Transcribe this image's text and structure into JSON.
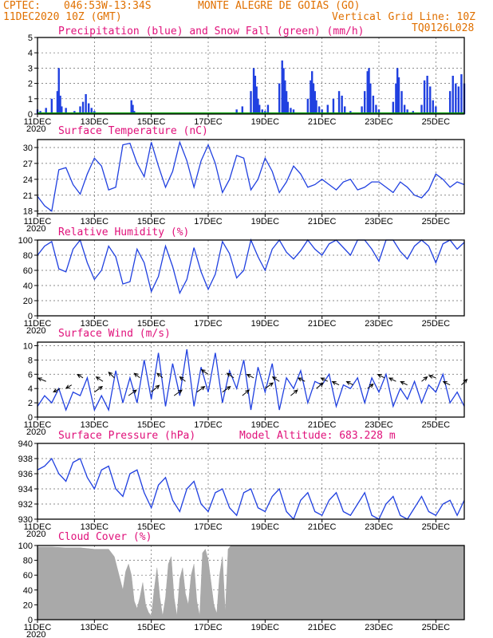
{
  "header": {
    "source": "CPTEC:",
    "location_coords": "046:53W-13:34S",
    "location_name": "MONTE ALEGRE DE GOIAS (GO)",
    "run_time": "11DEC2020 10Z (GMT)",
    "grid_note": "Vertical Grid Line: 10Z",
    "model_code": "TQ0126L028"
  },
  "colors": {
    "header": "#e07000",
    "panel_title": "#e0107a",
    "series_line": "#2040e0",
    "precip": "#2040e0",
    "snow": "#00a000",
    "cloud": "#a9a9a9"
  },
  "x_axis": {
    "start": "11DEC2020 10Z",
    "end": "26DEC2020 10Z",
    "tick_days": [
      11,
      13,
      15,
      17,
      19,
      21,
      23,
      25
    ],
    "tick_labels": [
      "11DEC",
      "13DEC",
      "15DEC",
      "17DEC",
      "19DEC",
      "21DEC",
      "23DEC",
      "25DEC"
    ],
    "year_label": "2020"
  },
  "chart_data": [
    {
      "type": "bar",
      "title": "Precipitation (blue) and Snow Fall (green) (mm/h)",
      "ylim": [
        0,
        5
      ],
      "yticks": [
        0,
        1,
        2,
        3,
        4,
        5
      ],
      "series": [
        {
          "name": "Precipitation",
          "days": [
            11.0,
            11.1,
            11.2,
            11.3,
            11.5,
            11.7,
            11.75,
            11.8,
            11.85,
            12.0,
            12.3,
            12.5,
            12.6,
            12.7,
            12.8,
            12.9,
            13.0,
            13.5,
            14.3,
            14.35,
            14.4,
            18.0,
            18.2,
            18.5,
            18.6,
            18.65,
            18.7,
            18.75,
            18.8,
            18.9,
            19.0,
            19.1,
            19.5,
            19.6,
            19.65,
            19.7,
            19.75,
            19.8,
            19.9,
            20.0,
            20.5,
            20.6,
            20.65,
            20.7,
            20.75,
            20.8,
            20.9,
            21.0,
            21.2,
            21.4,
            21.6,
            21.7,
            21.8,
            22.0,
            22.4,
            22.5,
            22.6,
            22.65,
            22.7,
            22.8,
            22.9,
            23.0,
            23.5,
            23.6,
            23.65,
            23.7,
            23.8,
            23.9,
            24.0,
            24.2,
            24.5,
            24.6,
            24.7,
            24.8,
            24.9,
            25.0,
            25.5,
            25.6,
            25.7,
            25.8,
            25.9,
            26.0
          ],
          "values": [
            0.3,
            0.2,
            0.1,
            0.4,
            1.0,
            1.5,
            3.0,
            1.2,
            0.5,
            0.4,
            0.2,
            0.5,
            0.8,
            1.3,
            0.7,
            0.4,
            0.2,
            0.1,
            0.9,
            0.6,
            0.2,
            0.3,
            0.5,
            1.5,
            3.0,
            2.5,
            1.8,
            1.0,
            0.6,
            0.3,
            0.2,
            0.6,
            2.0,
            3.5,
            3.0,
            2.2,
            1.5,
            0.8,
            0.4,
            0.3,
            1.0,
            2.2,
            2.8,
            2.0,
            1.5,
            0.9,
            0.5,
            0.3,
            0.6,
            1.0,
            1.5,
            1.2,
            0.5,
            0.2,
            0.5,
            1.5,
            2.8,
            3.0,
            2.0,
            1.2,
            0.6,
            0.3,
            0.8,
            2.0,
            3.0,
            2.4,
            1.5,
            0.6,
            0.3,
            0.2,
            0.6,
            2.2,
            2.5,
            1.8,
            0.9,
            0.5,
            1.5,
            2.5,
            2.0,
            1.8,
            2.6,
            2.0
          ]
        },
        {
          "name": "Snow Fall",
          "days": [
            11.0,
            26.0
          ],
          "values": [
            0,
            0
          ]
        }
      ]
    },
    {
      "type": "line",
      "title": "Surface Temperature (nC)",
      "ylim": [
        17.5,
        31.5
      ],
      "yticks": [
        18,
        21,
        24,
        27,
        30
      ],
      "x_days": [
        11.0,
        11.25,
        11.5,
        11.75,
        12.0,
        12.25,
        12.5,
        12.75,
        13.0,
        13.25,
        13.5,
        13.75,
        14.0,
        14.25,
        14.5,
        14.75,
        15.0,
        15.25,
        15.5,
        15.75,
        16.0,
        16.25,
        16.5,
        16.75,
        17.0,
        17.25,
        17.5,
        17.75,
        18.0,
        18.25,
        18.5,
        18.75,
        19.0,
        19.25,
        19.5,
        19.75,
        20.0,
        20.25,
        20.5,
        20.75,
        21.0,
        21.25,
        21.5,
        21.75,
        22.0,
        22.25,
        22.5,
        22.75,
        23.0,
        23.25,
        23.5,
        23.75,
        24.0,
        24.25,
        24.5,
        24.75,
        25.0,
        25.25,
        25.5,
        25.75,
        26.0
      ],
      "values": [
        20.8,
        19.0,
        18.0,
        25.8,
        26.2,
        23.0,
        21.2,
        25.0,
        28.0,
        26.5,
        22.0,
        22.5,
        30.5,
        30.8,
        27.0,
        24.5,
        31.0,
        26.5,
        22.5,
        25.5,
        31.0,
        27.5,
        22.5,
        27.5,
        30.5,
        27.0,
        21.5,
        24.0,
        28.5,
        28.0,
        22.0,
        24.0,
        28.0,
        25.5,
        21.5,
        23.5,
        26.5,
        25.0,
        22.5,
        23.0,
        24.0,
        23.0,
        22.0,
        23.5,
        24.0,
        22.0,
        22.5,
        23.5,
        23.5,
        22.5,
        21.5,
        23.5,
        22.5,
        21.0,
        20.5,
        22.0,
        25.0,
        24.0,
        22.5,
        23.5,
        23.0
      ]
    },
    {
      "type": "line",
      "title": "Relative Humidity (%)",
      "ylim": [
        0,
        100
      ],
      "yticks": [
        0,
        20,
        40,
        60,
        80,
        100
      ],
      "x_days": [
        11.0,
        11.25,
        11.5,
        11.75,
        12.0,
        12.25,
        12.5,
        12.75,
        13.0,
        13.25,
        13.5,
        13.75,
        14.0,
        14.25,
        14.5,
        14.75,
        15.0,
        15.25,
        15.5,
        15.75,
        16.0,
        16.25,
        16.5,
        16.75,
        17.0,
        17.25,
        17.5,
        17.75,
        18.0,
        18.25,
        18.5,
        18.75,
        19.0,
        19.25,
        19.5,
        19.75,
        20.0,
        20.25,
        20.5,
        20.75,
        21.0,
        21.25,
        21.5,
        21.75,
        22.0,
        22.25,
        22.5,
        22.75,
        23.0,
        23.25,
        23.5,
        23.75,
        24.0,
        24.25,
        24.5,
        24.75,
        25.0,
        25.25,
        25.5,
        25.75,
        26.0
      ],
      "values": [
        80,
        92,
        98,
        62,
        58,
        88,
        100,
        70,
        48,
        60,
        92,
        78,
        42,
        45,
        88,
        70,
        32,
        52,
        92,
        65,
        30,
        48,
        90,
        58,
        35,
        55,
        98,
        82,
        50,
        60,
        100,
        78,
        60,
        88,
        100,
        84,
        75,
        86,
        100,
        88,
        80,
        95,
        100,
        90,
        80,
        100,
        100,
        88,
        72,
        100,
        100,
        85,
        75,
        92,
        100,
        92,
        70,
        95,
        100,
        88,
        97
      ]
    },
    {
      "type": "line",
      "title": "Surface Wind (m/s)",
      "ylim": [
        0,
        10.5
      ],
      "yticks": [
        0,
        2,
        4,
        6,
        8,
        10
      ],
      "x_days": [
        11.0,
        11.25,
        11.5,
        11.75,
        12.0,
        12.25,
        12.5,
        12.75,
        13.0,
        13.25,
        13.5,
        13.75,
        14.0,
        14.25,
        14.5,
        14.75,
        15.0,
        15.25,
        15.5,
        15.75,
        16.0,
        16.25,
        16.5,
        16.75,
        17.0,
        17.25,
        17.5,
        17.75,
        18.0,
        18.25,
        18.5,
        18.75,
        19.0,
        19.25,
        19.5,
        19.75,
        20.0,
        20.25,
        20.5,
        20.75,
        21.0,
        21.25,
        21.5,
        21.75,
        22.0,
        22.25,
        22.5,
        22.75,
        23.0,
        23.25,
        23.5,
        23.75,
        24.0,
        24.25,
        24.5,
        24.75,
        25.0,
        25.25,
        25.5,
        25.75,
        26.0
      ],
      "values": [
        1.5,
        3.0,
        2.0,
        4.0,
        1.0,
        3.5,
        3.0,
        5.5,
        1.0,
        3.0,
        1.0,
        6.5,
        2.0,
        5.5,
        2.0,
        8.0,
        2.5,
        9.0,
        1.5,
        7.5,
        3.0,
        9.5,
        1.5,
        7.0,
        3.5,
        9.0,
        2.0,
        6.5,
        4.0,
        8.0,
        1.0,
        7.0,
        3.5,
        7.5,
        1.0,
        5.5,
        4.0,
        6.5,
        2.0,
        5.0,
        4.5,
        6.0,
        1.5,
        4.5,
        4.0,
        5.5,
        2.0,
        5.5,
        3.5,
        6.0,
        1.5,
        4.0,
        2.5,
        5.0,
        2.0,
        4.5,
        3.5,
        6.0,
        2.0,
        3.5,
        1.5
      ]
    },
    {
      "type": "line",
      "title": "Surface Pressure (hPa)",
      "annotation": "Model Altitude: 683.228 m",
      "ylim": [
        930,
        940
      ],
      "yticks": [
        930,
        932,
        934,
        936,
        938,
        940
      ],
      "x_days": [
        11.0,
        11.25,
        11.5,
        11.75,
        12.0,
        12.25,
        12.5,
        12.75,
        13.0,
        13.25,
        13.5,
        13.75,
        14.0,
        14.25,
        14.5,
        14.75,
        15.0,
        15.25,
        15.5,
        15.75,
        16.0,
        16.25,
        16.5,
        16.75,
        17.0,
        17.25,
        17.5,
        17.75,
        18.0,
        18.25,
        18.5,
        18.75,
        19.0,
        19.25,
        19.5,
        19.75,
        20.0,
        20.25,
        20.5,
        20.75,
        21.0,
        21.25,
        21.5,
        21.75,
        22.0,
        22.25,
        22.5,
        22.75,
        23.0,
        23.25,
        23.5,
        23.75,
        24.0,
        24.25,
        24.5,
        24.75,
        25.0,
        25.25,
        25.5,
        25.75,
        26.0
      ],
      "values": [
        936.5,
        937.0,
        938.0,
        936.0,
        935.0,
        937.5,
        938.0,
        935.5,
        934.0,
        936.5,
        937.0,
        934.0,
        933.0,
        936.0,
        936.5,
        933.5,
        931.5,
        934.5,
        935.5,
        932.5,
        931.0,
        934.0,
        935.0,
        932.0,
        931.0,
        933.5,
        934.0,
        931.5,
        930.5,
        933.5,
        934.0,
        931.5,
        931.0,
        933.0,
        934.0,
        931.0,
        930.0,
        932.5,
        933.5,
        931.0,
        930.5,
        932.5,
        933.5,
        931.0,
        930.5,
        932.0,
        933.5,
        930.5,
        930.0,
        932.0,
        933.0,
        930.5,
        930.0,
        931.5,
        933.0,
        931.0,
        930.5,
        932.0,
        932.5,
        930.5,
        932.5
      ]
    },
    {
      "type": "area",
      "title": "Cloud Cover (%)",
      "ylim": [
        0,
        100
      ],
      "yticks": [
        0,
        20,
        40,
        60,
        80,
        100
      ],
      "x_days": [
        11.0,
        11.5,
        12.0,
        12.5,
        13.0,
        13.3,
        13.5,
        13.7,
        13.8,
        13.9,
        14.0,
        14.1,
        14.2,
        14.3,
        14.4,
        14.5,
        14.6,
        14.7,
        14.8,
        14.9,
        15.0,
        15.1,
        15.2,
        15.3,
        15.4,
        15.5,
        15.6,
        15.7,
        15.8,
        15.9,
        16.0,
        16.1,
        16.2,
        16.3,
        16.4,
        16.5,
        16.6,
        16.7,
        16.8,
        16.9,
        17.0,
        17.1,
        17.2,
        17.3,
        17.4,
        17.5,
        17.6,
        17.7,
        17.8,
        18.0,
        18.5,
        19.0,
        20.0,
        21.0,
        22.0,
        23.0,
        24.0,
        25.0,
        26.0
      ],
      "values": [
        98,
        98,
        97,
        97,
        95,
        95,
        95,
        85,
        70,
        55,
        40,
        65,
        75,
        60,
        25,
        15,
        30,
        50,
        20,
        10,
        5,
        40,
        70,
        30,
        5,
        30,
        75,
        85,
        30,
        5,
        55,
        70,
        35,
        20,
        60,
        75,
        25,
        5,
        90,
        95,
        80,
        50,
        20,
        8,
        60,
        85,
        10,
        95,
        100,
        100,
        100,
        100,
        100,
        100,
        100,
        100,
        100,
        100,
        100
      ]
    }
  ],
  "wind_vectors": {
    "days": [
      11.3,
      11.8,
      12.2,
      12.6,
      13.0,
      13.3,
      13.7,
      14.2,
      14.6,
      15.0,
      15.4,
      15.8,
      16.2,
      16.6,
      17.0,
      17.5,
      17.9,
      18.2,
      18.6,
      19.0,
      19.5,
      19.9,
      20.4,
      20.8,
      21.2,
      21.6,
      22.1,
      22.6,
      23.2,
      23.6,
      24.0,
      24.5,
      25.0,
      25.5,
      25.9
    ],
    "level": [
      5.0,
      4.0,
      4.5,
      5.5,
      3.5,
      5.0,
      5.5,
      3.0,
      5.5,
      3.5,
      5.5,
      3.0,
      5.0,
      3.5,
      6.0,
      3.5,
      5.5,
      3.0,
      5.5,
      4.0,
      5.0,
      3.0,
      5.0,
      4.0,
      5.0,
      4.5,
      4.5,
      4.0,
      5.5,
      5.0,
      4.5,
      5.0,
      5.5,
      4.5,
      4.5
    ],
    "u": [
      -0.7,
      -0.6,
      -0.5,
      -0.5,
      0.7,
      -0.6,
      -0.5,
      0.7,
      -0.5,
      0.7,
      -0.5,
      0.7,
      -0.5,
      0.7,
      -0.6,
      0.7,
      -0.6,
      0.6,
      -0.6,
      0.7,
      -0.6,
      0.6,
      -0.6,
      0.6,
      -0.6,
      -0.6,
      -0.6,
      0.5,
      -0.6,
      -0.6,
      -0.6,
      0.5,
      -0.6,
      -0.6,
      0.5
    ],
    "v": [
      0.3,
      -0.3,
      -0.3,
      0.3,
      0.5,
      0.4,
      0.5,
      0.5,
      0.4,
      0.6,
      0.4,
      0.5,
      0.4,
      0.5,
      0.4,
      0.5,
      0.4,
      0.5,
      0.3,
      0.5,
      0.4,
      0.5,
      0.3,
      0.5,
      0.3,
      0.3,
      0.3,
      0.4,
      0.3,
      0.3,
      0.3,
      0.4,
      0.2,
      0.3,
      0.5
    ]
  }
}
